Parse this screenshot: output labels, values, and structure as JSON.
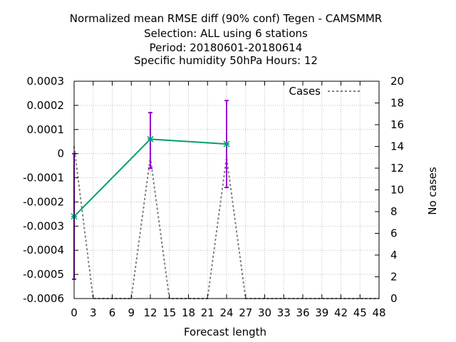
{
  "chart_data": {
    "type": "line",
    "title_lines": [
      "Normalized mean RMSE diff (90% conf) Tegen - CAMSMMR",
      "Selection: ALL using     6 stations",
      "Period: 20180601-20180614",
      "Specific humidity 50hPa   Hours:  12"
    ],
    "xlabel": "Forecast length",
    "ylabel": "",
    "y2label": "No cases",
    "xlim": [
      0,
      48
    ],
    "ylim": [
      -0.0006,
      0.0003
    ],
    "y2lim": [
      0,
      20
    ],
    "x_ticks": [
      "0",
      "3",
      "6",
      "9",
      "12",
      "15",
      "18",
      "21",
      "24",
      "27",
      "30",
      "33",
      "36",
      "39",
      "42",
      "45",
      "48"
    ],
    "y_ticks": [
      "0.0003",
      "0.0002",
      "0.0001",
      "0",
      "-0.0001",
      "-0.0002",
      "-0.0003",
      "-0.0004",
      "-0.0005",
      "-0.0006"
    ],
    "y2_ticks": [
      "20",
      "18",
      "16",
      "14",
      "12",
      "10",
      "8",
      "6",
      "4",
      "2",
      "0"
    ],
    "grid": true,
    "legend_position": "top-right",
    "series": [
      {
        "name": "",
        "axis": "y",
        "color": "#009e73",
        "x": [
          0,
          12,
          24
        ],
        "y": [
          -0.00026,
          6e-05,
          4e-05
        ],
        "errorbars": [
          {
            "x": 0,
            "low": -0.00052,
            "high": 0.0
          },
          {
            "x": 12,
            "low": -6e-05,
            "high": 0.00017
          },
          {
            "x": 24,
            "low": -0.00014,
            "high": 0.00022
          }
        ],
        "errorbar_color": "#9400d3"
      },
      {
        "name": "Cases",
        "axis": "y2",
        "color": "#808080",
        "dashed": true,
        "x": [
          0,
          3,
          9,
          12,
          15,
          21,
          24,
          27,
          48
        ],
        "y": [
          14,
          0,
          0,
          13,
          0,
          0,
          13,
          0,
          0
        ]
      }
    ]
  }
}
